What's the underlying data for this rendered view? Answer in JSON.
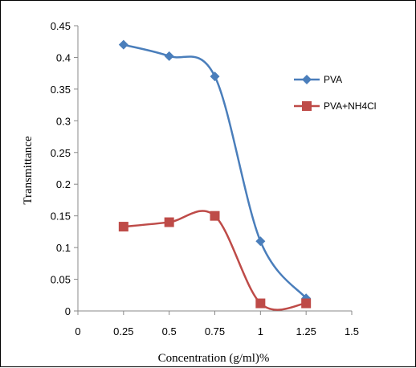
{
  "chart_data": {
    "type": "line",
    "smooth": true,
    "xlabel": "Concentration (g/ml)%",
    "ylabel": "Transmittance",
    "xlim": [
      0,
      1.5
    ],
    "ylim": [
      0,
      0.45
    ],
    "x_ticks": [
      "0",
      "0.25",
      "0.5",
      "0.75",
      "1",
      "1.25",
      "1.5"
    ],
    "y_ticks": [
      "0",
      "0.05",
      "0.1",
      "0.15",
      "0.2",
      "0.25",
      "0.3",
      "0.35",
      "0.4",
      "0.45"
    ],
    "grid": false,
    "legend_position": "right",
    "series": [
      {
        "name": "PVA",
        "color": "#4a7ebb",
        "marker": "diamond",
        "x": [
          0.25,
          0.5,
          0.75,
          1,
          1.25
        ],
        "y": [
          0.42,
          0.402,
          0.37,
          0.11,
          0.02
        ]
      },
      {
        "name": "PVA+NH4Cl",
        "color": "#be4b48",
        "marker": "square",
        "x": [
          0.25,
          0.5,
          0.75,
          1,
          1.25
        ],
        "y": [
          0.133,
          0.14,
          0.15,
          0.012,
          0.012
        ]
      }
    ]
  }
}
